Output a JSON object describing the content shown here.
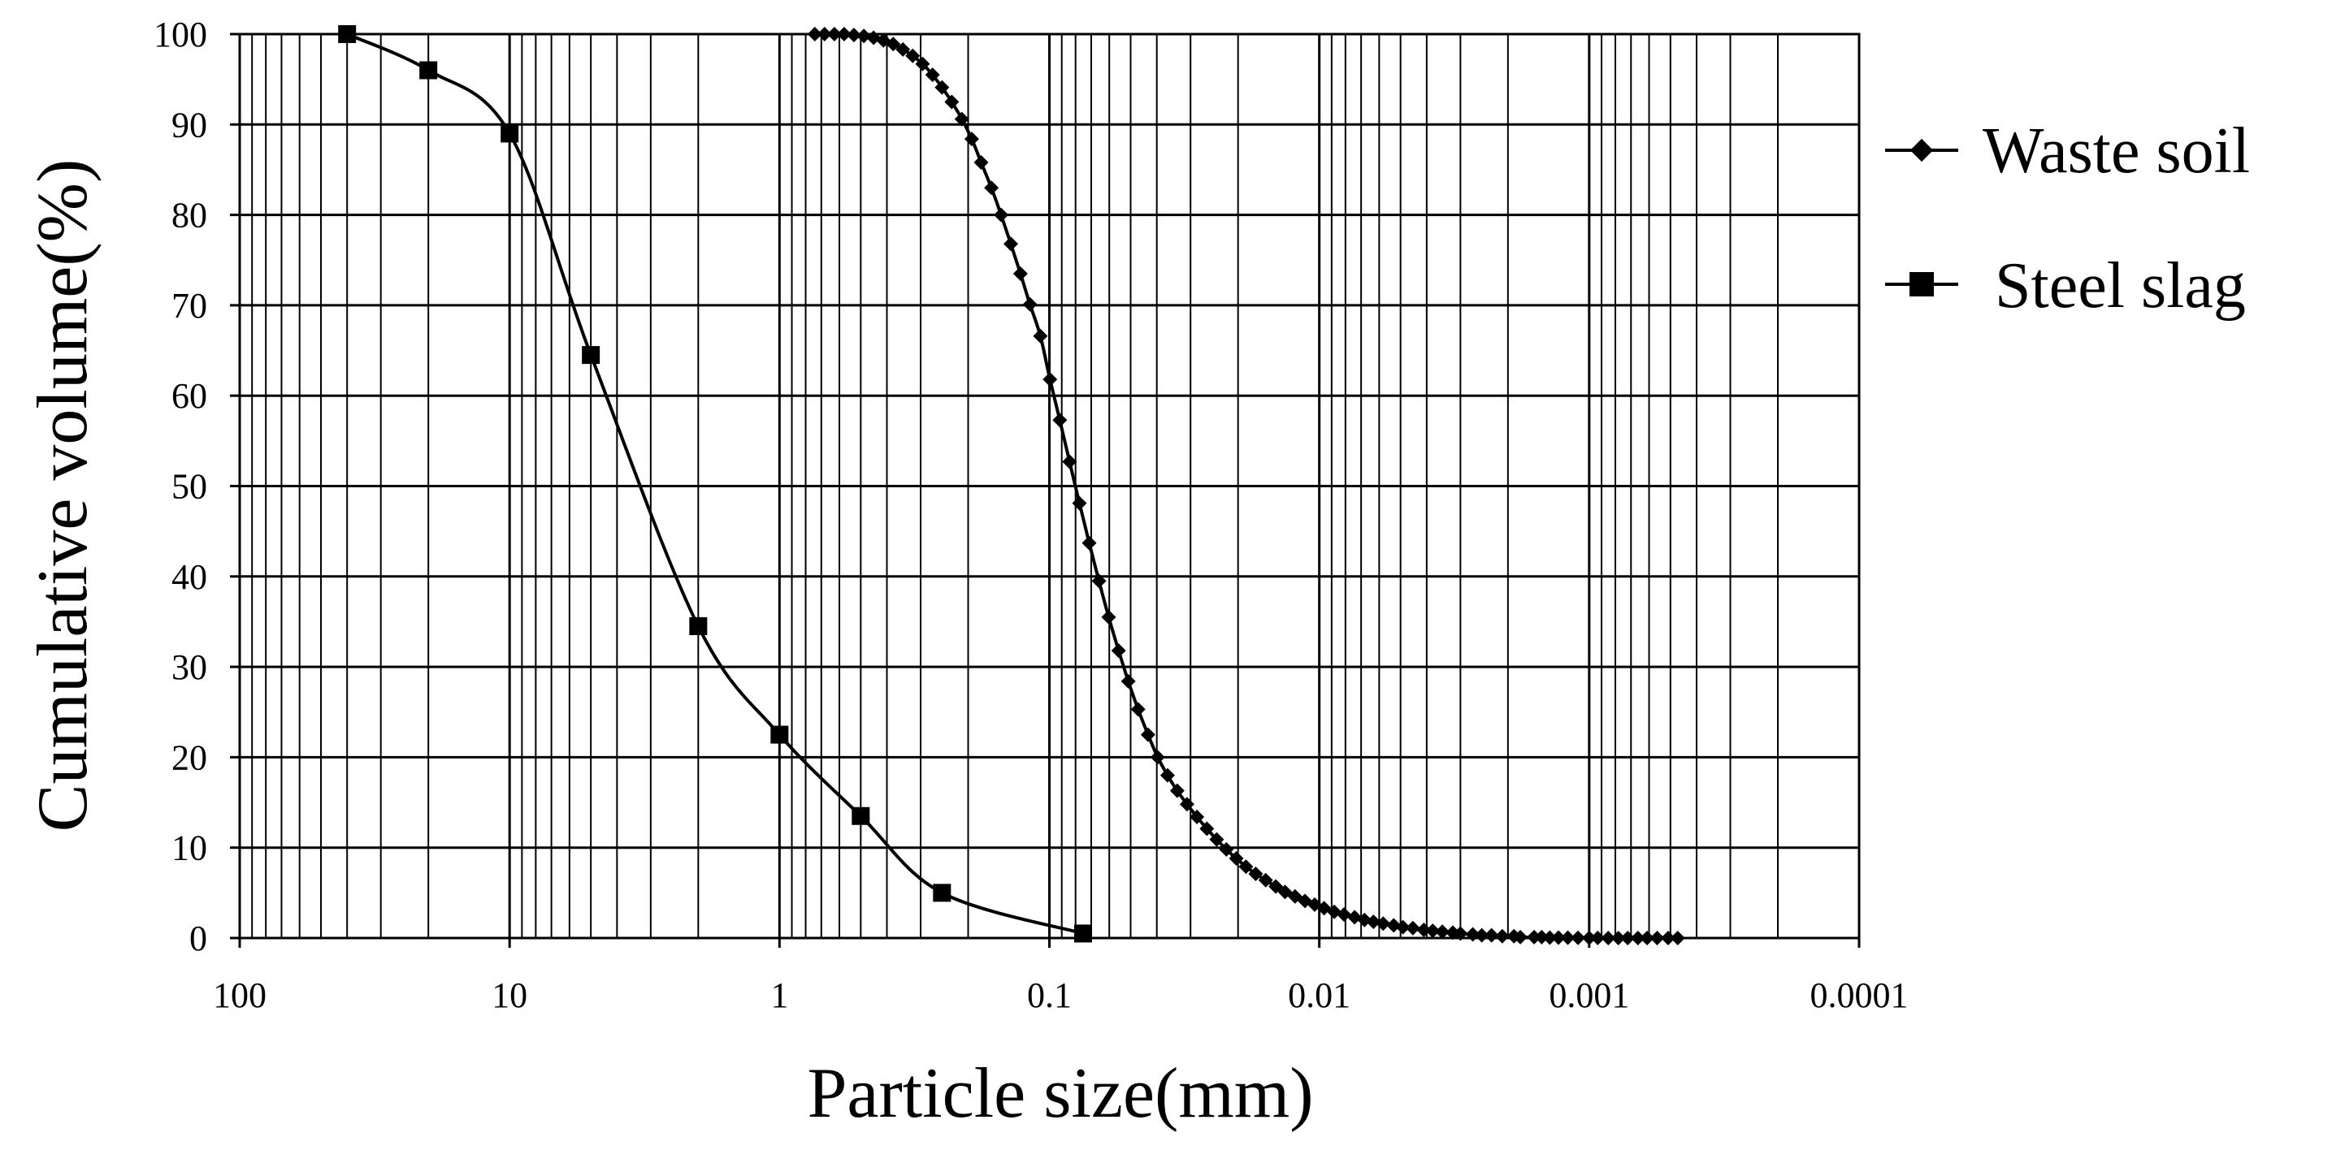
{
  "chart_data": {
    "type": "line",
    "title": "",
    "xlabel": "Particle size(mm)",
    "ylabel": "Cumulative volume(%)",
    "x_scale": "log",
    "x_reversed": true,
    "xlim": [
      100,
      0.0001
    ],
    "ylim": [
      0,
      100
    ],
    "x_ticks": [
      100,
      10,
      1,
      0.1,
      0.01,
      0.001,
      0.0001
    ],
    "x_tick_labels": [
      "100",
      "10",
      "1",
      "0.1",
      "0.01",
      "0.001",
      "0.0001"
    ],
    "y_ticks": [
      0,
      10,
      20,
      30,
      40,
      50,
      60,
      70,
      80,
      90,
      100
    ],
    "y_tick_labels": [
      "0",
      "10",
      "20",
      "30",
      "40",
      "50",
      "60",
      "70",
      "80",
      "90",
      "100"
    ],
    "grid": "on",
    "legend_position": "right",
    "series": [
      {
        "name": "Waste soil",
        "marker": "diamond",
        "color": "#000000",
        "x": [
          0.74,
          0.681,
          0.626,
          0.576,
          0.53,
          0.487,
          0.448,
          0.412,
          0.379,
          0.349,
          0.321,
          0.295,
          0.271,
          0.25,
          0.23,
          0.211,
          0.194,
          0.179,
          0.164,
          0.151,
          0.139,
          0.128,
          0.118,
          0.108,
          0.0995,
          0.0915,
          0.0842,
          0.0774,
          0.0712,
          0.0655,
          0.0603,
          0.0554,
          0.051,
          0.0469,
          0.0431,
          0.0397,
          0.0365,
          0.0336,
          0.0309,
          0.0284,
          0.0261,
          0.024,
          0.0221,
          0.0203,
          0.0187,
          0.0172,
          0.0158,
          0.0145,
          0.0134,
          0.0123,
          0.0113,
          0.0104,
          0.0096,
          0.0088,
          0.0081,
          0.0074,
          0.0068,
          0.0063,
          0.0058,
          0.0053,
          0.0049,
          0.0045,
          0.0041,
          0.0038,
          0.0035,
          0.0032,
          0.003,
          0.0027,
          0.0025,
          0.0023,
          0.0021,
          0.0019,
          0.0018,
          0.0016,
          0.0015,
          0.0014,
          0.0013,
          0.0012,
          0.0011,
          0.001,
          0.00093,
          0.00085,
          0.00078,
          0.00072,
          0.00066,
          0.00061,
          0.00056,
          0.00051,
          0.00047
        ],
        "y": [
          100,
          100,
          100,
          100,
          99.9,
          99.8,
          99.6,
          99.3,
          98.9,
          98.3,
          97.6,
          96.7,
          95.5,
          94.1,
          92.5,
          90.6,
          88.4,
          85.8,
          83.0,
          80.0,
          76.8,
          73.5,
          70.1,
          66.6,
          61.8,
          57.3,
          52.7,
          48.1,
          43.7,
          39.5,
          35.5,
          31.8,
          28.4,
          25.3,
          22.5,
          20.0,
          18.0,
          16.3,
          14.8,
          13.4,
          12.1,
          10.9,
          9.8,
          8.8,
          7.9,
          7.1,
          6.4,
          5.7,
          5.1,
          4.6,
          4.1,
          3.7,
          3.3,
          2.9,
          2.6,
          2.3,
          2.0,
          1.8,
          1.6,
          1.4,
          1.2,
          1.1,
          0.9,
          0.8,
          0.7,
          0.6,
          0.5,
          0.4,
          0.3,
          0.3,
          0.2,
          0.2,
          0.1,
          0.1,
          0.1,
          0.05,
          0.05,
          0.03,
          0.02,
          0.01,
          0.01,
          0,
          0,
          0,
          0,
          0,
          0,
          0,
          0
        ]
      },
      {
        "name": "Steel slag",
        "marker": "square",
        "color": "#000000",
        "x": [
          40,
          20,
          10,
          5,
          2,
          1,
          0.5,
          0.25,
          0.075
        ],
        "y": [
          100,
          96,
          89,
          64.5,
          34.5,
          22.5,
          13.5,
          5,
          0.5
        ]
      }
    ]
  }
}
